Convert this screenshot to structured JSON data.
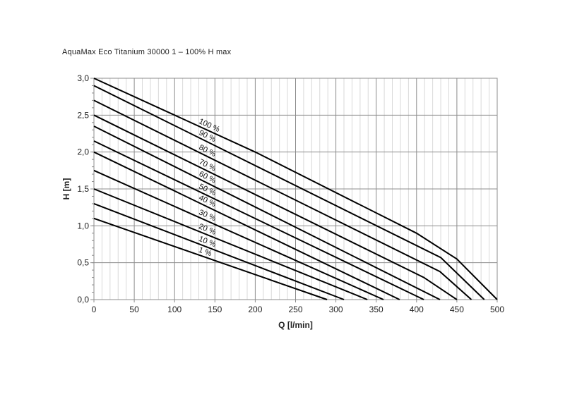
{
  "chart_data": {
    "type": "line",
    "title": "AquaMax Eco Titanium 30000 1 – 100% H max",
    "xlabel": "Q [l/min]",
    "ylabel": "H [m]",
    "xlim": [
      0,
      500
    ],
    "ylim": [
      0,
      3.0
    ],
    "x_ticks": [
      "0",
      "50",
      "100",
      "150",
      "200",
      "250",
      "300",
      "350",
      "400",
      "450",
      "500"
    ],
    "y_ticks": [
      "0,0",
      "0,5",
      "1,0",
      "1,5",
      "2,0",
      "2,5",
      "3,0"
    ],
    "grid": true,
    "line_color": "#000000",
    "grid_major_color": "#8c8c8c",
    "grid_minor_color": "#d9d9d9",
    "series": [
      {
        "name": "100 %",
        "points": [
          [
            0,
            3.0
          ],
          [
            200,
            2.0
          ],
          [
            400,
            0.9
          ],
          [
            450,
            0.55
          ],
          [
            500,
            0
          ]
        ]
      },
      {
        "name": "90 %",
        "points": [
          [
            0,
            2.9
          ],
          [
            430,
            0.57
          ],
          [
            484,
            0
          ]
        ]
      },
      {
        "name": "80 %",
        "points": [
          [
            0,
            2.7
          ],
          [
            429,
            0.38
          ],
          [
            468,
            0
          ]
        ]
      },
      {
        "name": "70 %",
        "points": [
          [
            0,
            2.5
          ],
          [
            409,
            0.3
          ],
          [
            450,
            0
          ]
        ]
      },
      {
        "name": "60 %",
        "points": [
          [
            0,
            2.35
          ],
          [
            429,
            0
          ]
        ]
      },
      {
        "name": "50 %",
        "points": [
          [
            0,
            2.15
          ],
          [
            409,
            0
          ]
        ]
      },
      {
        "name": "40 %",
        "points": [
          [
            0,
            2.0
          ],
          [
            379,
            0
          ]
        ]
      },
      {
        "name": "30 %",
        "points": [
          [
            0,
            1.75
          ],
          [
            359,
            0
          ]
        ]
      },
      {
        "name": "20 %",
        "points": [
          [
            0,
            1.5
          ],
          [
            339,
            0
          ]
        ]
      },
      {
        "name": "10 %",
        "points": [
          [
            0,
            1.3
          ],
          [
            310,
            0
          ]
        ]
      },
      {
        "name": "1 %",
        "points": [
          [
            0,
            1.1
          ],
          [
            289,
            0
          ]
        ]
      }
    ]
  }
}
